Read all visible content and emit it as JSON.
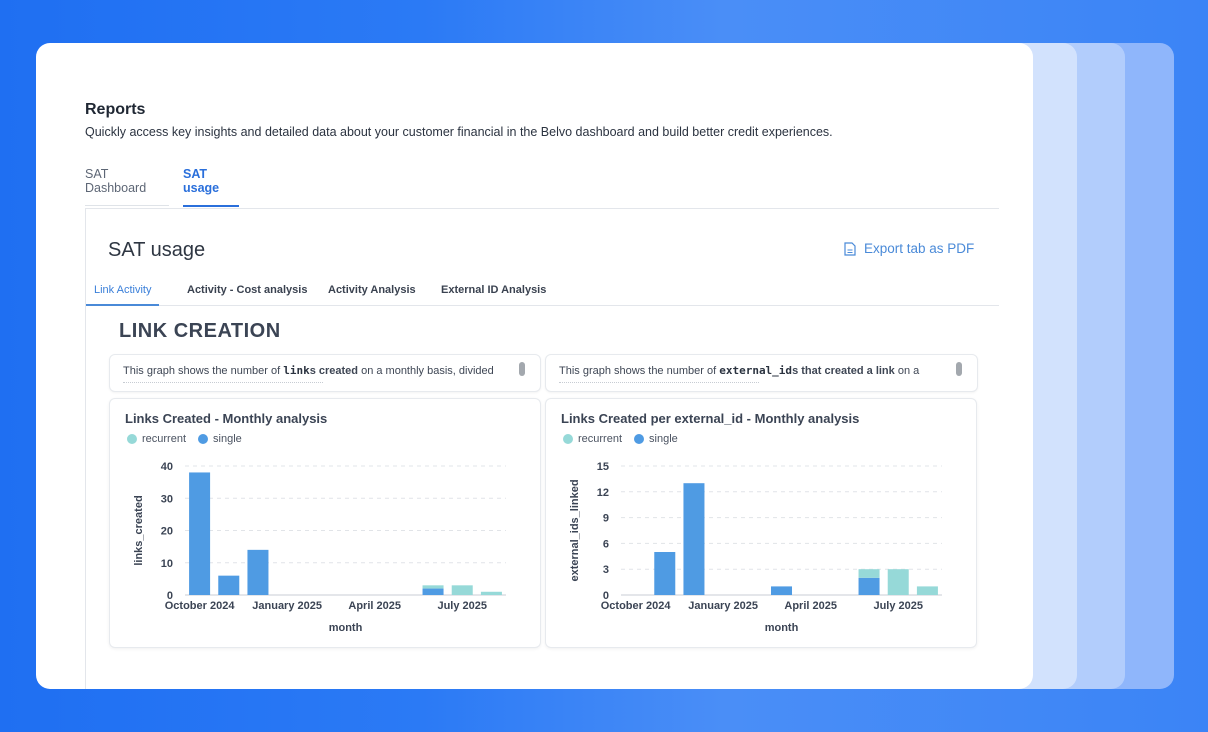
{
  "reports": {
    "title": "Reports",
    "subtitle": "Quickly access key insights and detailed data about your customer financial in the Belvo dashboard and build better credit experiences.",
    "tabs": [
      {
        "label": "SAT Dashboard",
        "active": false
      },
      {
        "label": "SAT usage",
        "active": true
      }
    ]
  },
  "panel": {
    "title": "SAT usage",
    "export_label": "Export tab as PDF",
    "export_icon": "file-icon",
    "subtabs": [
      {
        "label": "Link Activity",
        "active": true
      },
      {
        "label": "Activity - Cost analysis",
        "active": false
      },
      {
        "label": "Activity Analysis",
        "active": false
      },
      {
        "label": "External ID Analysis",
        "active": false
      }
    ],
    "section_title": "LINK CREATION"
  },
  "descriptions": [
    {
      "pre": "This graph shows the number of ",
      "code": "link",
      "bold": "s created",
      "post": " on a monthly basis, divided"
    },
    {
      "pre": "This graph shows the number of ",
      "code": "external_id",
      "bold": "s that created a link",
      "post": " on a"
    }
  ],
  "colors": {
    "recurrent": "#96d9d8",
    "single": "#4f9be3"
  },
  "chart_data": [
    {
      "type": "bar",
      "stacked": true,
      "title": "Links Created - Monthly analysis",
      "xlabel": "month",
      "ylabel": "links_created",
      "ylim": [
        0,
        40
      ],
      "yticks": [
        0,
        10,
        20,
        30,
        40
      ],
      "x": [
        "2024-10",
        "2024-11",
        "2024-12",
        "2025-01",
        "2025-02",
        "2025-03",
        "2025-04",
        "2025-05",
        "2025-06",
        "2025-07",
        "2025-08"
      ],
      "xtick_labels": [
        {
          "at": "2024-10",
          "label": "October 2024"
        },
        {
          "at": "2025-01",
          "label": "January 2025"
        },
        {
          "at": "2025-04",
          "label": "April 2025"
        },
        {
          "at": "2025-07",
          "label": "July 2025"
        }
      ],
      "series": [
        {
          "name": "recurrent",
          "values": [
            0,
            0,
            0,
            0,
            0,
            0,
            0,
            0,
            1,
            3,
            1
          ]
        },
        {
          "name": "single",
          "values": [
            38,
            6,
            14,
            0,
            0,
            0,
            0,
            0,
            2,
            0,
            0
          ]
        }
      ],
      "legend": "top-left",
      "grid": true
    },
    {
      "type": "bar",
      "stacked": true,
      "title": "Links Created per external_id - Monthly analysis",
      "xlabel": "month",
      "ylabel": "external_ids_linked",
      "ylim": [
        0,
        15
      ],
      "yticks": [
        0,
        3,
        6,
        9,
        12,
        15
      ],
      "x": [
        "2024-10",
        "2024-11",
        "2024-12",
        "2025-01",
        "2025-02",
        "2025-03",
        "2025-04",
        "2025-05",
        "2025-06",
        "2025-07",
        "2025-08"
      ],
      "xtick_labels": [
        {
          "at": "2024-10",
          "label": "October 2024"
        },
        {
          "at": "2025-01",
          "label": "January 2025"
        },
        {
          "at": "2025-04",
          "label": "April 2025"
        },
        {
          "at": "2025-07",
          "label": "July 2025"
        }
      ],
      "series": [
        {
          "name": "recurrent",
          "values": [
            0,
            0,
            0,
            0,
            0,
            0,
            0,
            0,
            1,
            3,
            1
          ]
        },
        {
          "name": "single",
          "values": [
            0,
            5,
            13,
            0,
            0,
            1,
            0,
            0,
            2,
            0,
            0
          ]
        }
      ],
      "legend": "top-left",
      "grid": true
    }
  ]
}
